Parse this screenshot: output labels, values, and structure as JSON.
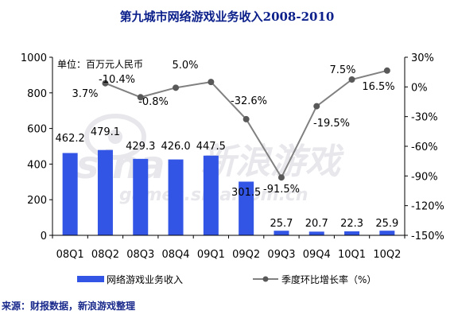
{
  "chart_data": {
    "type": "bar",
    "title": "第九城市网络游戏业务收入2008-2010",
    "unit_note": "单位：百万元人民币",
    "categories": [
      "08Q1",
      "08Q2",
      "08Q3",
      "08Q4",
      "09Q1",
      "09Q2",
      "09Q3",
      "09Q4",
      "10Q1",
      "10Q2"
    ],
    "series": [
      {
        "name": "网络游戏业务收入",
        "kind": "bar",
        "axis": "left",
        "color": "#3355e6",
        "values": [
          462.2,
          479.1,
          429.3,
          426.0,
          447.5,
          301.5,
          25.7,
          20.7,
          22.3,
          25.9
        ],
        "labels": [
          "462.2",
          "479.1",
          "429.3",
          "426.0",
          "447.5",
          "301.5",
          "25.7",
          "20.7",
          "22.3",
          "25.9"
        ]
      },
      {
        "name": "季度环比增长率（%）",
        "kind": "line",
        "axis": "right",
        "color": "#808080",
        "values": [
          null,
          3.7,
          -10.4,
          -0.8,
          5.0,
          -32.6,
          -91.5,
          -19.5,
          7.5,
          16.5
        ],
        "labels": [
          null,
          "3.7%",
          "-10.4%",
          "-0.8%",
          "5.0%",
          "-32.6%",
          "-91.5%",
          "-19.5%",
          "7.5%",
          "16.5%"
        ]
      }
    ],
    "y_left": {
      "ylim": [
        0,
        1000
      ],
      "ticks": [
        0,
        200,
        400,
        600,
        800,
        1000
      ],
      "tick_labels": [
        "0",
        "200",
        "400",
        "600",
        "800",
        "1000"
      ]
    },
    "y_right": {
      "ylim": [
        -150,
        30
      ],
      "ticks": [
        30,
        0,
        -30,
        -60,
        -90,
        -120,
        -150
      ],
      "tick_labels": [
        "30%",
        "0%",
        "-30%",
        "-60%",
        "-90%",
        "-120%",
        "-150%"
      ]
    },
    "legend_position": "bottom",
    "grid": false
  },
  "watermark": {
    "brand": "sina",
    "cn": "新浪游戏",
    "url": "games.sina.com.cn"
  },
  "source_note": "来源：财报数据，新浪游戏整理",
  "colors": {
    "bar": "#3355e6",
    "line": "#808080",
    "title": "#0b1f8a",
    "watermark": "#e8e8ec"
  }
}
